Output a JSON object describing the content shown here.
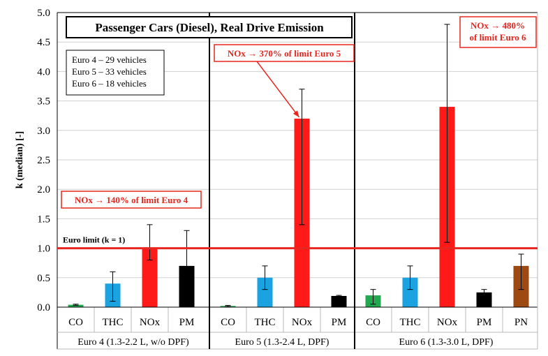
{
  "chart_data": {
    "type": "bar",
    "title": "Passenger Cars (Diesel), Real Drive Emission",
    "ylabel": "k (median) [-]",
    "ylim": [
      0,
      5
    ],
    "yticks": [
      "0.0",
      "0.5",
      "1.0",
      "1.5",
      "2.0",
      "2.5",
      "3.0",
      "3.5",
      "4.0",
      "4.5",
      "5.0"
    ],
    "grid": "horizontal",
    "legend": [
      "Euro 4 – 29 vehicles",
      "Euro 5 – 33 vehicles",
      "Euro 6 – 18 vehicles"
    ],
    "limit_line": {
      "value": 1.0,
      "label": "Euro limit (k = 1)",
      "color": "#e8261f"
    },
    "colors": {
      "CO": "#22a94f",
      "THC": "#1aa3e0",
      "NOx": "#ff1a1a",
      "PM": "#000000",
      "PN": "#9c4a12"
    },
    "groups": [
      {
        "label": "Euro 4 (1.3-2.2 L, w/o DPF)",
        "annotation": "NOx → 140% of limit Euro 4",
        "bars": [
          {
            "category": "CO",
            "value": 0.04,
            "err_low": 0.03,
            "err_high": 0.05
          },
          {
            "category": "THC",
            "value": 0.4,
            "err_low": 0.1,
            "err_high": 0.6
          },
          {
            "category": "NOx",
            "value": 1.0,
            "err_low": 0.8,
            "err_high": 1.4
          },
          {
            "category": "PM",
            "value": 0.7,
            "err_low": 0.3,
            "err_high": 1.3
          }
        ]
      },
      {
        "label": "Euro 5 (1.3-2.4 L, DPF)",
        "annotation": "NOx → 370% of limit Euro 5",
        "bars": [
          {
            "category": "CO",
            "value": 0.02,
            "err_low": 0.01,
            "err_high": 0.03
          },
          {
            "category": "THC",
            "value": 0.5,
            "err_low": 0.3,
            "err_high": 0.7
          },
          {
            "category": "NOx",
            "value": 3.2,
            "err_low": 1.4,
            "err_high": 3.7
          },
          {
            "category": "PM",
            "value": 0.19,
            "err_low": 0.18,
            "err_high": 0.2
          }
        ]
      },
      {
        "label": "Euro 6 (1.3-3.0 L, DPF)",
        "annotation_lines": [
          "NOx → 480%",
          "of limit Euro 6"
        ],
        "bars": [
          {
            "category": "CO",
            "value": 0.2,
            "err_low": 0.05,
            "err_high": 0.3
          },
          {
            "category": "THC",
            "value": 0.5,
            "err_low": 0.3,
            "err_high": 0.7
          },
          {
            "category": "NOx",
            "value": 3.4,
            "err_low": 1.1,
            "err_high": 4.8
          },
          {
            "category": "PM",
            "value": 0.25,
            "err_low": 0.2,
            "err_high": 0.3
          },
          {
            "category": "PN",
            "value": 0.7,
            "err_low": 0.3,
            "err_high": 0.9
          }
        ]
      }
    ]
  }
}
